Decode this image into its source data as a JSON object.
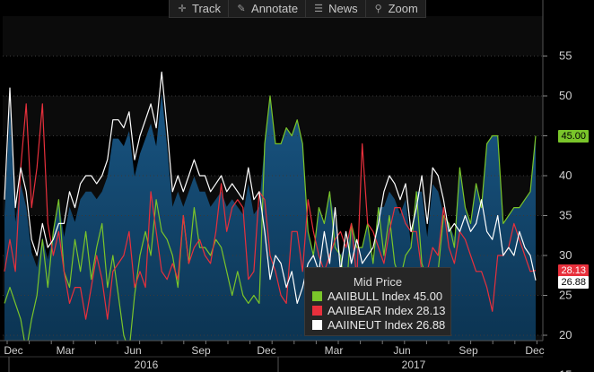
{
  "toolbar": {
    "items": [
      {
        "label": "Track",
        "icon": "crosshair-icon",
        "glyph": "✛"
      },
      {
        "label": "Annotate",
        "icon": "pencil-icon",
        "glyph": "✎"
      },
      {
        "label": "News",
        "icon": "news-icon",
        "glyph": "☰"
      },
      {
        "label": "Zoom",
        "icon": "magnifier-icon",
        "glyph": "⚲"
      }
    ]
  },
  "legend": {
    "title": "Mid Price",
    "entries": [
      {
        "label": "AAIIBULL Index 45.00",
        "color": "#7ac52a"
      },
      {
        "label": "AAIIBEAR Index 28.13",
        "color": "#e8303c"
      },
      {
        "label": "AAIINEUT Index 26.88",
        "color": "#ffffff"
      }
    ]
  },
  "price_tags": [
    {
      "label": "45.00",
      "value": 45.0,
      "bg": "#7ac52a",
      "fg": "#000000"
    },
    {
      "label": "28.13",
      "value": 28.13,
      "bg": "#e8303c",
      "fg": "#ffffff"
    },
    {
      "label": "26.88",
      "value": 26.88,
      "bg": "#ffffff",
      "fg": "#000000"
    }
  ],
  "chart_data": {
    "type": "line",
    "y_ticks": [
      15,
      20,
      25,
      30,
      35,
      40,
      45,
      50,
      55
    ],
    "ylim": [
      14,
      56
    ],
    "x_month_labels": [
      "Dec",
      "Mar",
      "Jun",
      "Sep",
      "Dec",
      "Mar",
      "Jun",
      "Sep",
      "Dec"
    ],
    "x_year_labels": [
      "2016",
      "2017"
    ],
    "x_range": [
      "2015-11-26",
      "2017-12-14"
    ],
    "grid": true,
    "colors": {
      "bull": "#7ac52a",
      "bear": "#e8303c",
      "neut": "#ffffff",
      "fill": "#0d3a5c"
    },
    "series": [
      {
        "name": "AAIIBULL",
        "color": "#7ac52a",
        "values": [
          24,
          26,
          24,
          22,
          18,
          22,
          25,
          32,
          26,
          33,
          37,
          28,
          26,
          32,
          28,
          33,
          27,
          31,
          34,
          26,
          30,
          25,
          20,
          18,
          25,
          30,
          33,
          30,
          37,
          33,
          32,
          30,
          26,
          35,
          29,
          36,
          31,
          31,
          30,
          32,
          31,
          28,
          25,
          28,
          25,
          24,
          25,
          24,
          44,
          50,
          44,
          44,
          46,
          45,
          47,
          44,
          33,
          30,
          36,
          34,
          38,
          31,
          30,
          25,
          34,
          31,
          31,
          34,
          29,
          36,
          30,
          35,
          29,
          27,
          30,
          31,
          38,
          29,
          27,
          25,
          28,
          35,
          34,
          31,
          41,
          36,
          34,
          39,
          36,
          44,
          45,
          45,
          34,
          35,
          36,
          36,
          37,
          38,
          45
        ]
      },
      {
        "name": "AAIIBEAR",
        "color": "#e8303c",
        "values": [
          28,
          32,
          28,
          41,
          49,
          36,
          41,
          49,
          34,
          30,
          33,
          28,
          24,
          26,
          26,
          22,
          26,
          30,
          27,
          22,
          28,
          29,
          30,
          33,
          26,
          28,
          26,
          38,
          33,
          28,
          27,
          29,
          27,
          35,
          29,
          31,
          32,
          30,
          29,
          33,
          39,
          33,
          36,
          37,
          36,
          27,
          28,
          38,
          37,
          30,
          28,
          25,
          24,
          33,
          33,
          28,
          37,
          33,
          30,
          28,
          30,
          32,
          33,
          31,
          34,
          27,
          44,
          34,
          33,
          31,
          29,
          33,
          36,
          36,
          34,
          33,
          33,
          28,
          28,
          31,
          30,
          36,
          31,
          29,
          33,
          32,
          30,
          28,
          28,
          26,
          23,
          30,
          30,
          31,
          34,
          32,
          30,
          28,
          28.13
        ]
      },
      {
        "name": "AAIINEUT",
        "color": "#ffffff",
        "values": [
          37,
          51,
          36,
          41,
          38,
          32,
          30,
          34,
          31,
          32,
          34,
          34,
          38,
          36,
          39,
          40,
          40,
          39,
          40,
          42,
          47,
          47,
          46,
          48,
          42,
          45,
          47,
          49,
          46,
          53,
          46,
          38,
          40,
          38,
          40,
          42,
          40,
          40,
          38,
          39,
          40,
          38,
          39,
          38,
          37,
          41,
          37,
          38,
          33,
          27,
          30,
          29,
          26,
          28,
          24,
          26,
          29,
          30,
          28,
          33,
          29,
          36,
          28,
          33,
          29,
          32,
          29,
          30,
          31,
          34,
          38,
          40,
          39,
          37,
          39,
          33,
          36,
          40,
          34,
          41,
          40,
          37,
          33,
          34,
          33,
          35,
          33,
          34,
          37,
          33,
          32,
          35,
          30,
          31,
          30,
          33,
          31,
          30,
          26.88
        ]
      }
    ]
  }
}
